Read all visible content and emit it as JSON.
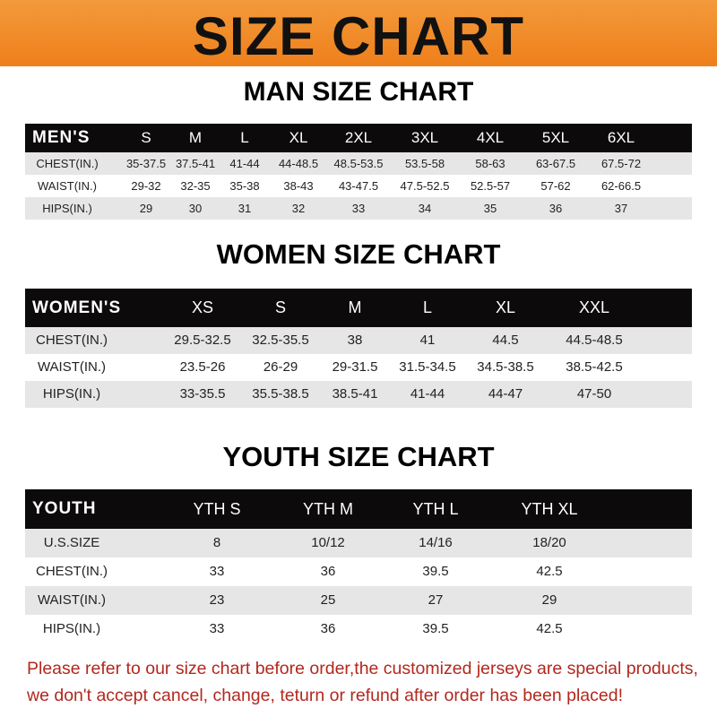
{
  "banner": {
    "title": "SIZE CHART",
    "color": "#ee8420"
  },
  "men": {
    "title": "MAN SIZE CHART",
    "header": [
      "MEN'S",
      "S",
      "M",
      "L",
      "XL",
      "2XL",
      "3XL",
      "4XL",
      "5XL",
      "6XL"
    ],
    "rows": [
      [
        "CHEST(IN.)",
        "35-37.5",
        "37.5-41",
        "41-44",
        "44-48.5",
        "48.5-53.5",
        "53.5-58",
        "58-63",
        "63-67.5",
        "67.5-72"
      ],
      [
        "WAIST(IN.)",
        "29-32",
        "32-35",
        "35-38",
        "38-43",
        "43-47.5",
        "47.5-52.5",
        "52.5-57",
        "57-62",
        "62-66.5"
      ],
      [
        "HIPS(IN.)",
        "29",
        "30",
        "31",
        "32",
        "33",
        "34",
        "35",
        "36",
        "37"
      ]
    ]
  },
  "women": {
    "title": "WOMEN SIZE CHART",
    "header": [
      "WOMEN'S",
      "XS",
      "S",
      "M",
      "L",
      "XL",
      "XXL"
    ],
    "rows": [
      [
        "CHEST(IN.)",
        "29.5-32.5",
        "32.5-35.5",
        "38",
        "41",
        "44.5",
        "44.5-48.5"
      ],
      [
        "WAIST(IN.)",
        "23.5-26",
        "26-29",
        "29-31.5",
        "31.5-34.5",
        "34.5-38.5",
        "38.5-42.5"
      ],
      [
        "HIPS(IN.)",
        "33-35.5",
        "35.5-38.5",
        "38.5-41",
        "41-44",
        "44-47",
        "47-50"
      ]
    ]
  },
  "youth": {
    "title": "YOUTH SIZE CHART",
    "header": [
      "YOUTH",
      "YTH S",
      "YTH M",
      "YTH L",
      "YTH XL"
    ],
    "rows": [
      [
        "U.S.SIZE",
        "8",
        "10/12",
        "14/16",
        "18/20"
      ],
      [
        "CHEST(IN.)",
        "33",
        "36",
        "39.5",
        "42.5"
      ],
      [
        "WAIST(IN.)",
        "23",
        "25",
        "27",
        "29"
      ],
      [
        "HIPS(IN.)",
        "33",
        "36",
        "39.5",
        "42.5"
      ]
    ]
  },
  "note": {
    "line1": "Please refer to our size chart before order,the customized jerseys are special products,",
    "line2": "we don't accept cancel, change, teturn or refund after order has been placed!",
    "color": "#b3281e"
  }
}
